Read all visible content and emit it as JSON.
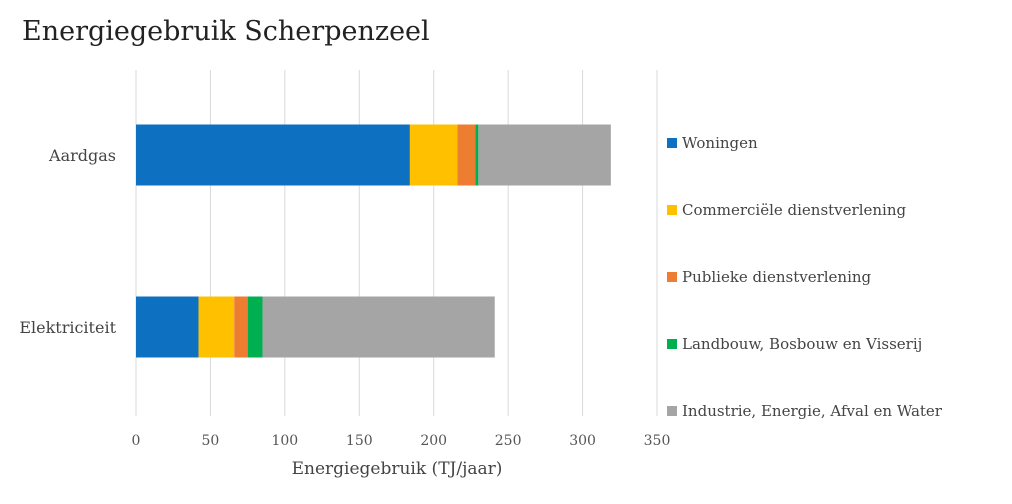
{
  "chart_data": {
    "type": "bar",
    "orientation": "horizontal",
    "stacked": true,
    "title": "Energiegebruik Scherpenzeel",
    "xlabel": "Energiegebruik (TJ/jaar)",
    "ylabel": "",
    "xlim": [
      0,
      350
    ],
    "xticks": [
      "0",
      "50",
      "100",
      "150",
      "200",
      "250",
      "300",
      "350"
    ],
    "grid": true,
    "legend_position": "right",
    "categories": [
      "Aardgas",
      "Elektriciteit"
    ],
    "series": [
      {
        "name": "Woningen",
        "color": "#0E70C0",
        "values": [
          184,
          42
        ]
      },
      {
        "name": "Commerciële dienstverlening",
        "color": "#FFC000",
        "values": [
          32,
          24
        ]
      },
      {
        "name": "Publieke dienstverlening",
        "color": "#ED7D31",
        "values": [
          12,
          9
        ]
      },
      {
        "name": "Landbouw, Bosbouw en Visserij",
        "color": "#00B050",
        "values": [
          2,
          10
        ]
      },
      {
        "name": "Industrie, Energie, Afval en Water",
        "color": "#A5A5A5",
        "values": [
          89,
          156
        ]
      }
    ]
  }
}
